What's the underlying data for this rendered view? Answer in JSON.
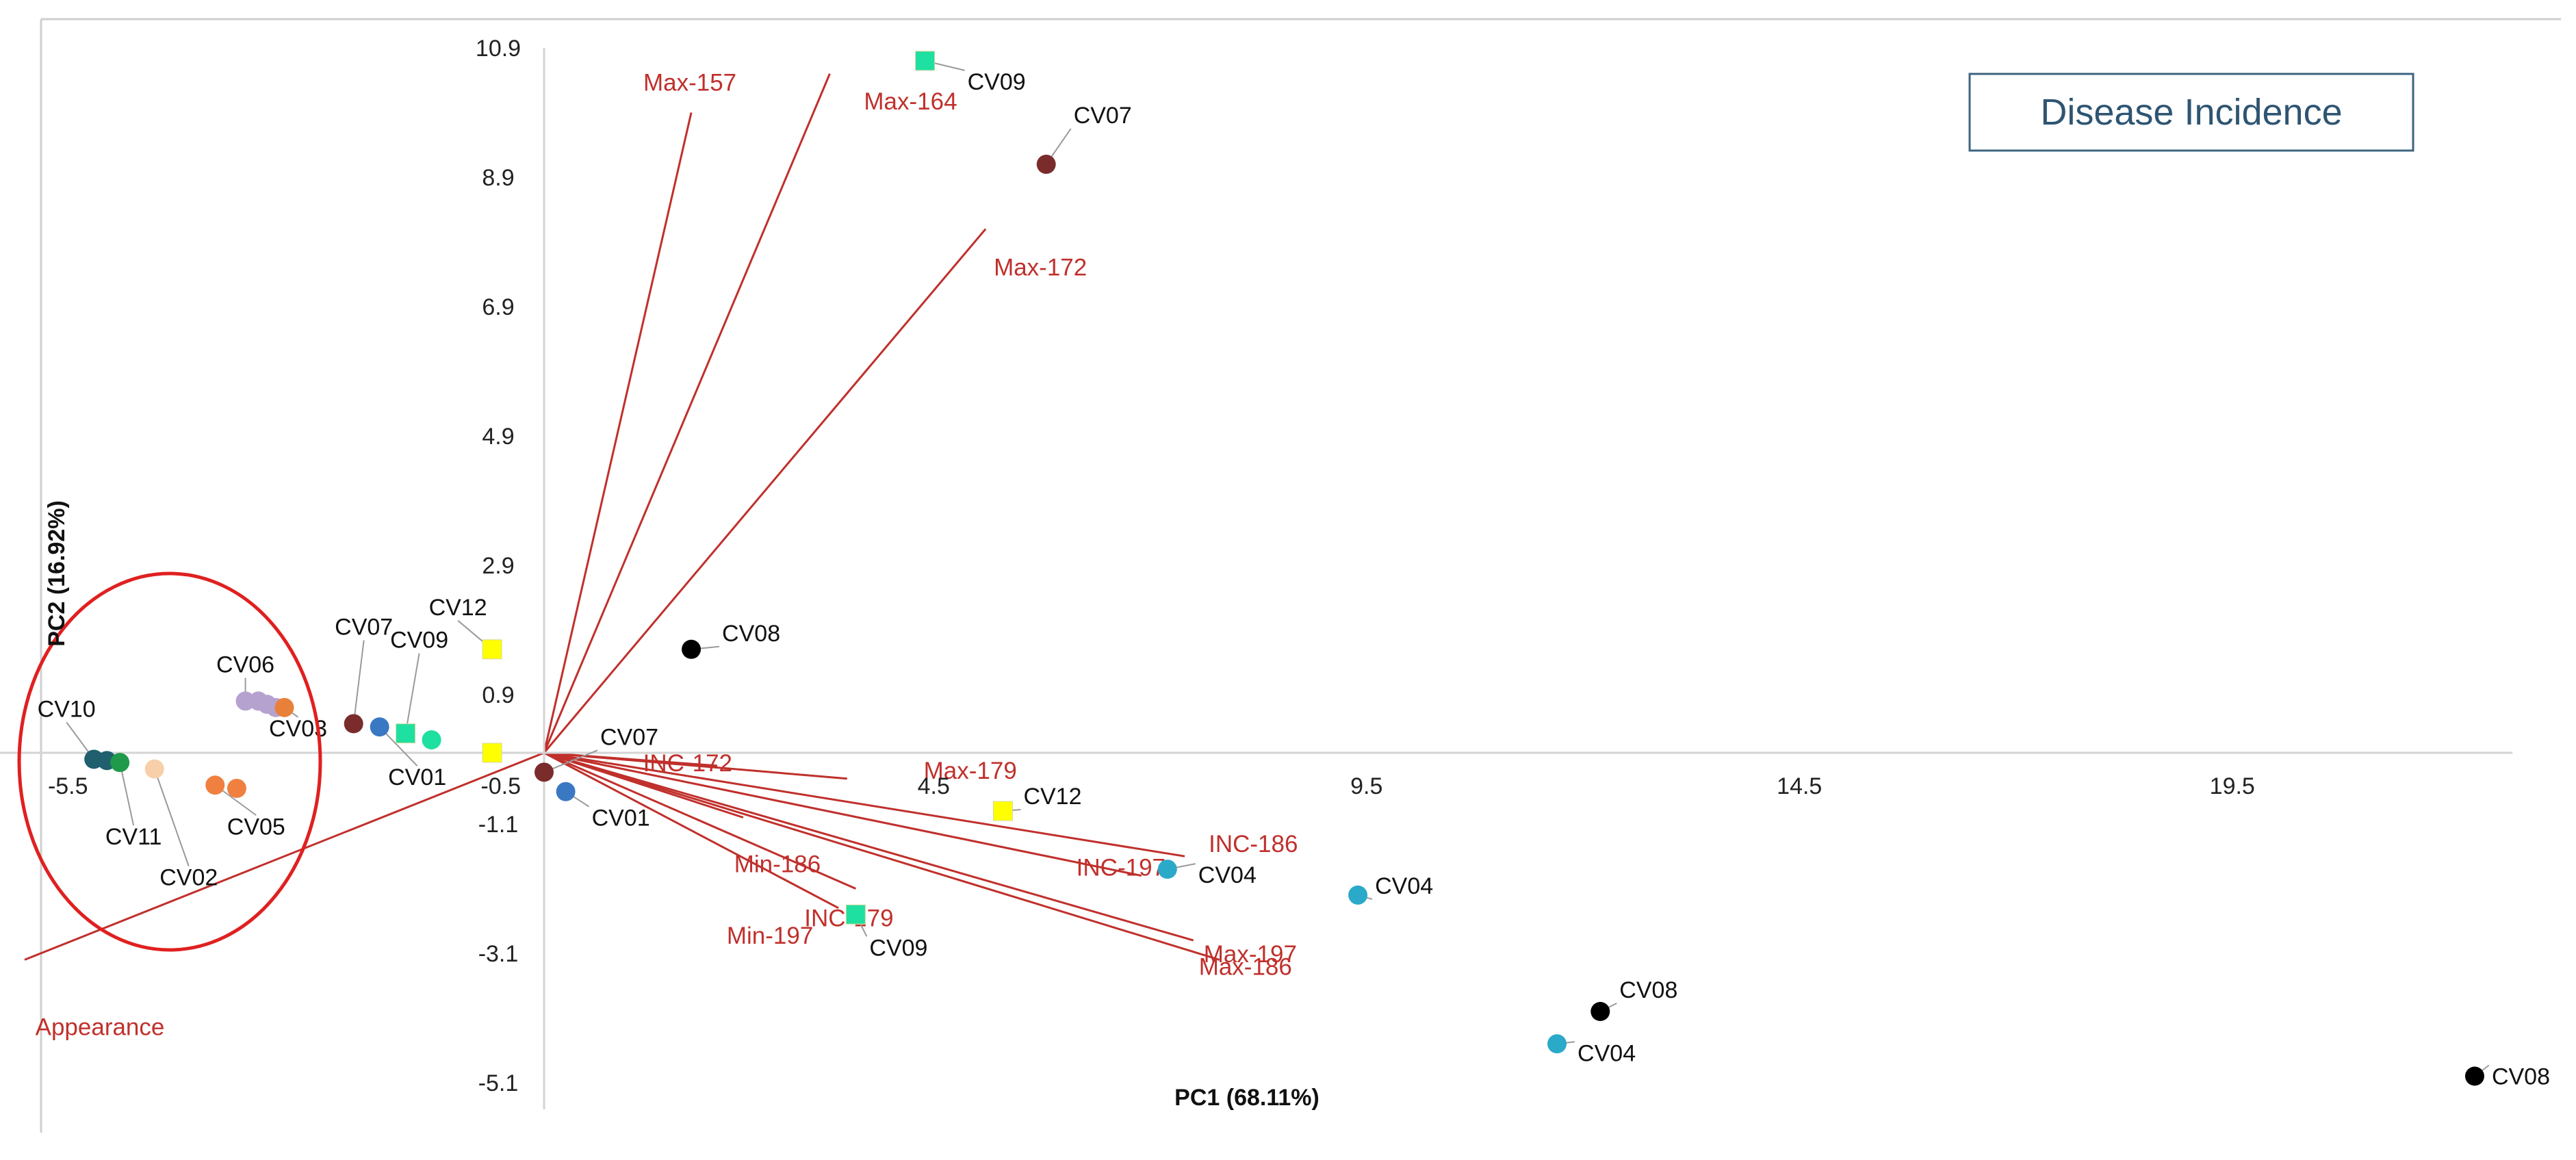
{
  "chart_data": {
    "type": "scatter",
    "title": "Disease Incidence",
    "xlabel": "PC1 (68.11%)",
    "ylabel": "PC2 (16.92%)",
    "xlim": [
      -6.3,
      22.5
    ],
    "ylim": [
      -5.3,
      10.9
    ],
    "x_ticks": [
      {
        "value": -5.5,
        "label": "-5.5"
      },
      {
        "value": -0.5,
        "label": "-0.5"
      },
      {
        "value": 4.5,
        "label": "4.5"
      },
      {
        "value": 9.5,
        "label": "9.5"
      },
      {
        "value": 14.5,
        "label": "14.5"
      },
      {
        "value": 19.5,
        "label": "19.5"
      }
    ],
    "y_ticks": [
      {
        "value": 10.9,
        "label": "10.9"
      },
      {
        "value": 8.9,
        "label": "8.9"
      },
      {
        "value": 6.9,
        "label": "6.9"
      },
      {
        "value": 4.9,
        "label": "4.9"
      },
      {
        "value": 2.9,
        "label": "2.9"
      },
      {
        "value": 0.9,
        "label": "0.9"
      },
      {
        "value": -1.1,
        "label": "-1.1"
      },
      {
        "value": -3.1,
        "label": "-3.1"
      },
      {
        "value": -5.1,
        "label": "-5.1"
      }
    ],
    "legend": "none",
    "grid": false,
    "colors": {
      "vector": "#c0302c",
      "CV01": "#3a78c3",
      "CV02": "#f7cfa8",
      "CV03": "#e8803a",
      "CV04": "#2ba9c9",
      "CV05": "#f08040",
      "CV06": "#b6a2cf",
      "CV07": "#7a2c2c",
      "CV08": "#000000",
      "CV09": "#1ee0a0",
      "CV10": "#1f5f6e",
      "CV11": "#1f9a4a",
      "CV12": "#ffff00"
    },
    "loadings": [
      {
        "label": "Max-157",
        "x": 1.7,
        "y": 9.9
      },
      {
        "label": "Max-164",
        "x": 3.3,
        "y": 10.5
      },
      {
        "label": "Max-172",
        "x": 5.1,
        "y": 8.1
      },
      {
        "label": "INC-172",
        "x": 2.0,
        "y": -0.2
      },
      {
        "label": "Max-179",
        "x": 3.5,
        "y": -0.4
      },
      {
        "label": "INC-186",
        "x": 7.4,
        "y": -1.6
      },
      {
        "label": "INC-197",
        "x": 6.9,
        "y": -1.9
      },
      {
        "label": "Max-197",
        "x": 7.5,
        "y": -2.9
      },
      {
        "label": "Max-186",
        "x": 7.8,
        "y": -3.2
      },
      {
        "label": "Min-186",
        "x": 2.3,
        "y": -1.0
      },
      {
        "label": "INC-179",
        "x": 3.6,
        "y": -2.1
      },
      {
        "label": "Min-197",
        "x": 3.4,
        "y": -2.4
      },
      {
        "label": "Appearance",
        "x": -6.0,
        "y": -3.2
      }
    ],
    "points": [
      {
        "label": "CV09",
        "x": 4.4,
        "y": 10.7,
        "marker": "square"
      },
      {
        "label": "CV07",
        "x": 5.8,
        "y": 9.1,
        "marker": "circle"
      },
      {
        "label": "CV08",
        "x": 1.7,
        "y": 1.6,
        "marker": "circle"
      },
      {
        "label": "CV07",
        "x": 0.0,
        "y": -0.3,
        "marker": "circle"
      },
      {
        "label": "CV01",
        "x": 0.25,
        "y": -0.6,
        "marker": "circle"
      },
      {
        "label": "CV12",
        "x": 5.3,
        "y": -0.9,
        "marker": "square"
      },
      {
        "label": "CV09",
        "x": 3.6,
        "y": -2.5,
        "marker": "square"
      },
      {
        "label": "CV04",
        "x": 7.2,
        "y": -1.8,
        "marker": "circle"
      },
      {
        "label": "CV04",
        "x": 9.4,
        "y": -2.2,
        "marker": "circle"
      },
      {
        "label": "CV08",
        "x": 12.2,
        "y": -4.0,
        "marker": "circle"
      },
      {
        "label": "CV04",
        "x": 11.7,
        "y": -4.5,
        "marker": "circle"
      },
      {
        "label": "CV08",
        "x": 22.3,
        "y": -5.0,
        "marker": "circle"
      },
      {
        "label": "CV07",
        "x": -2.2,
        "y": 0.45,
        "marker": "circle"
      },
      {
        "label": "CV01",
        "x": -1.9,
        "y": 0.4,
        "marker": "circle"
      },
      {
        "label": "CV09",
        "x": -1.6,
        "y": 0.3,
        "marker": "square"
      },
      {
        "label": "CV09",
        "x": -1.3,
        "y": 0.2,
        "marker": "circle"
      },
      {
        "label": "CV12",
        "x": -0.6,
        "y": 1.6,
        "marker": "square"
      },
      {
        "label": "CV12",
        "x": -0.6,
        "y": 0.0,
        "marker": "square"
      },
      {
        "label": "CV06",
        "x": -3.45,
        "y": 0.8,
        "marker": "circle"
      },
      {
        "label": "CV06",
        "x": -3.3,
        "y": 0.8,
        "marker": "circle"
      },
      {
        "label": "CV06",
        "x": -3.2,
        "y": 0.75,
        "marker": "circle"
      },
      {
        "label": "CV06",
        "x": -3.1,
        "y": 0.7,
        "marker": "circle"
      },
      {
        "label": "CV03",
        "x": -3.0,
        "y": 0.7,
        "marker": "circle"
      },
      {
        "label": "CV10",
        "x": -5.2,
        "y": -0.1,
        "marker": "circle"
      },
      {
        "label": "CV10",
        "x": -5.05,
        "y": -0.12,
        "marker": "circle"
      },
      {
        "label": "CV11",
        "x": -4.9,
        "y": -0.15,
        "marker": "circle"
      },
      {
        "label": "CV02",
        "x": -4.5,
        "y": -0.25,
        "marker": "circle"
      },
      {
        "label": "CV05",
        "x": -3.8,
        "y": -0.5,
        "marker": "circle"
      },
      {
        "label": "CV05",
        "x": -3.55,
        "y": -0.55,
        "marker": "circle"
      }
    ]
  }
}
